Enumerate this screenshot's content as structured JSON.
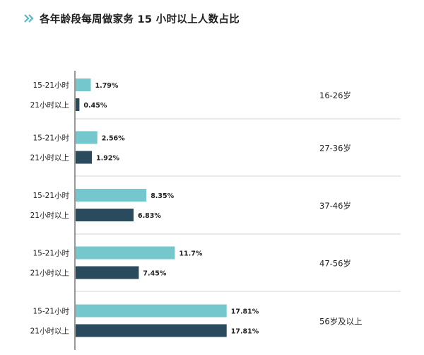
{
  "header": {
    "title": "各年龄段每周做家务 15 小时以上人数占比",
    "chevron_icon": "double-chevron-right-icon"
  },
  "colors": {
    "series1": "#74c7cd",
    "series2": "#2a4a5e",
    "accent": "#5bb8c5",
    "grid": "#d4d4d4",
    "axis": "#333333"
  },
  "chart_data": {
    "type": "bar",
    "orientation": "horizontal",
    "title": "各年龄段每周做家务 15 小时以上人数占比",
    "groups": [
      "16-26岁",
      "27-36岁",
      "37-46岁",
      "47-56岁",
      "56岁及以上"
    ],
    "series": [
      {
        "name": "15-21小时",
        "values": [
          1.79,
          2.56,
          8.35,
          11.7,
          17.81
        ]
      },
      {
        "name": "21小时以上",
        "values": [
          0.45,
          1.92,
          6.83,
          7.45,
          17.81
        ]
      }
    ],
    "value_labels": [
      [
        "1.79%",
        "0.45%"
      ],
      [
        "2.56%",
        "1.92%"
      ],
      [
        "8.35%",
        "6.83%"
      ],
      [
        "11.7%",
        "7.45%"
      ],
      [
        "17.81%",
        "17.81%"
      ]
    ],
    "unit": "%",
    "xlim": [
      0,
      21
    ],
    "grid": "horizontal group separators"
  }
}
